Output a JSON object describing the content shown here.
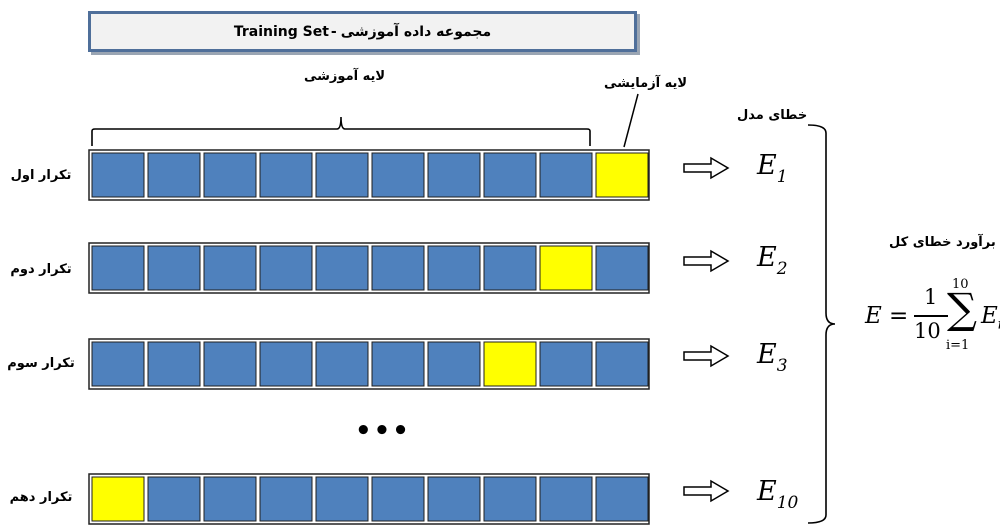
{
  "title": {
    "persian": "مجموعه داده آموزشی",
    "separator": "-",
    "english": "Training Set"
  },
  "labels": {
    "training_layer": "لایه آموزشی",
    "test_layer": "لایه آزمایشی",
    "model_error": "خطای مدل",
    "total_error_estimate": "برآورد خطای کل",
    "ellipsis": "•••"
  },
  "rows": [
    {
      "label": "تکرار اول",
      "error_symbol": "E",
      "error_index": "1",
      "test_fold": 10
    },
    {
      "label": "تکرار دوم",
      "error_symbol": "E",
      "error_index": "2",
      "test_fold": 9
    },
    {
      "label": "تکرار سوم",
      "error_symbol": "E",
      "error_index": "3",
      "test_fold": 8
    },
    {
      "label": "تکرار دهم",
      "error_symbol": "E",
      "error_index": "10",
      "test_fold": 1
    }
  ],
  "folds_per_row": 10,
  "formula": {
    "lhs": "E",
    "equals": "=",
    "numerator": "1",
    "denominator": "10",
    "sum_upper": "10",
    "sum_symbol": "∑",
    "sum_lower": "i=1",
    "term_symbol": "E",
    "term_index": "i"
  },
  "colors": {
    "train_fold": "#4f81bd",
    "test_fold": "#ffff00",
    "fold_border": "#1f1f1f",
    "row_frame": "#222222",
    "title_border": "#4f6f9a",
    "title_fill": "#f2f2f2"
  }
}
